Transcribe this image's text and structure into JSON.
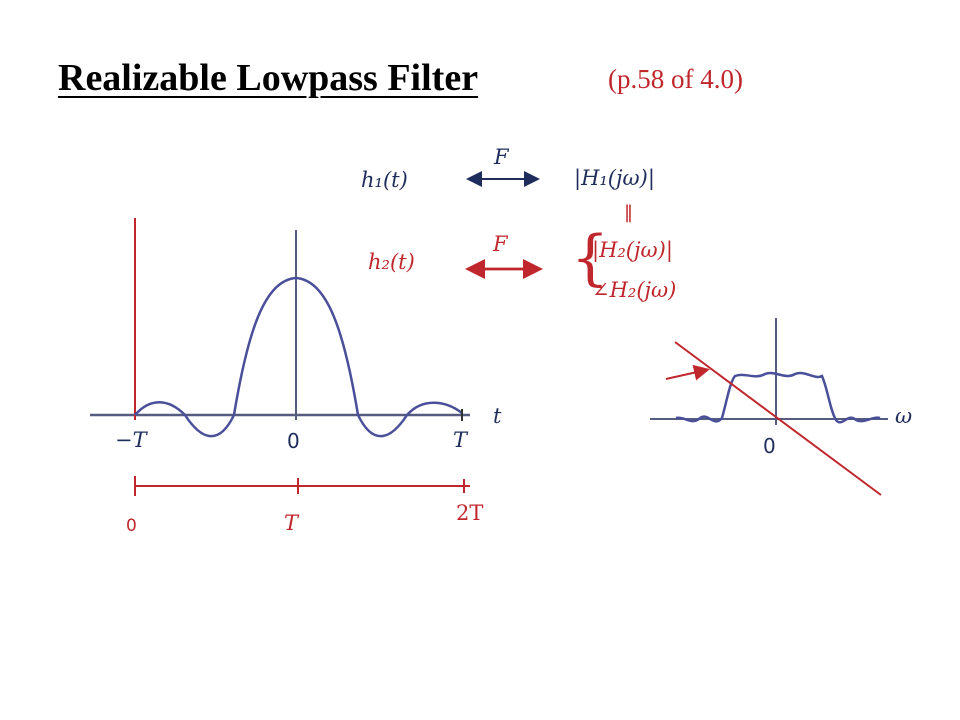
{
  "title": "Realizable Lowpass Filter",
  "subtitle": "(p.58 of 4.0)",
  "transform_pairs": {
    "row1": {
      "left": "h₁(t)",
      "op": "F",
      "right": "|H₁(jω)|"
    },
    "equal_sign": "‖",
    "row2": {
      "left": "h₂(t)",
      "op": "F",
      "right_top": "|H₂(jω)|",
      "right_bottom": "∠H₂(jω)"
    }
  },
  "time_plot": {
    "axis_label": "t",
    "ticks": [
      "−T",
      "0",
      "T"
    ],
    "shifted_ticks": [
      "0",
      "T",
      "2T"
    ]
  },
  "freq_plot": {
    "axis_label": "ω",
    "origin_label": "0"
  },
  "colors": {
    "navy": "#1f2d5c",
    "red": "#c0272d",
    "curve": "#4a4f9a"
  }
}
